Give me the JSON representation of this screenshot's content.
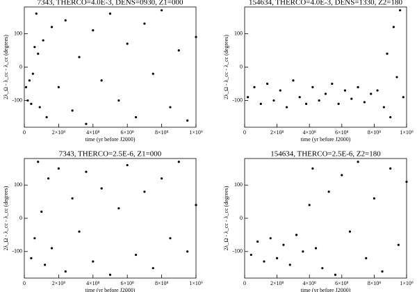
{
  "chart_data": [
    {
      "type": "scatter",
      "title": "7343, THERCO=4.0E-3, DENS=0930, Z1=000",
      "xlabel": "time (yr before J2000)",
      "ylabel": "2λ_Ω - λ_cc - λ_cc (degrees)",
      "color": "#000000",
      "x": [
        10000000,
        20000000,
        30000000,
        40000000,
        50000000,
        60000000,
        70000000,
        80000000,
        90000000,
        110000000,
        130000000,
        160000000,
        200000000,
        240000000,
        280000000,
        320000000,
        360000000,
        400000000,
        450000000,
        500000000,
        550000000,
        600000000,
        650000000,
        700000000,
        750000000,
        800000000,
        850000000,
        900000000,
        950000000,
        1000000000
      ],
      "values": [
        -60,
        -100,
        -40,
        -110,
        -20,
        60,
        160,
        40,
        -120,
        80,
        -150,
        120,
        -60,
        140,
        -130,
        30,
        -170,
        110,
        -40,
        160,
        -100,
        70,
        -150,
        130,
        -20,
        170,
        -120,
        50,
        -160,
        90
      ],
      "xlim": [
        0,
        1000000000
      ],
      "ylim": [
        -180,
        180
      ],
      "xticks": [
        0,
        {
          "value": 200000000,
          "label": "2×10⁸"
        },
        {
          "value": 400000000,
          "label": "4×10⁸"
        },
        {
          "value": 600000000,
          "label": "6×10⁸"
        },
        {
          "value": 800000000,
          "label": "8×10⁸"
        },
        {
          "value": 1000000000,
          "label": "1×10⁹"
        }
      ],
      "yticks": [
        -100,
        0,
        100
      ]
    },
    {
      "type": "scatter",
      "title": "154634, THERCO=4.0E-3, DENS=1330, Z2=180",
      "xlabel": "time (yr before J2000)",
      "ylabel": "2λ_Ω - λ_cc - λ_cc (degrees)",
      "color": "#000000",
      "x": [
        20000000,
        60000000,
        100000000,
        140000000,
        180000000,
        220000000,
        260000000,
        300000000,
        340000000,
        380000000,
        420000000,
        460000000,
        500000000,
        540000000,
        580000000,
        620000000,
        660000000,
        700000000,
        740000000,
        780000000,
        820000000,
        860000000,
        880000000,
        900000000,
        920000000,
        940000000,
        960000000,
        980000000
      ],
      "values": [
        -90,
        -60,
        -110,
        -50,
        -100,
        -70,
        -120,
        -40,
        -90,
        -110,
        -60,
        -100,
        -80,
        -50,
        -110,
        -70,
        -95,
        -60,
        -105,
        -80,
        -70,
        -120,
        40,
        -150,
        120,
        -30,
        170,
        -90
      ],
      "xlim": [
        0,
        1000000000
      ],
      "ylim": [
        -180,
        180
      ],
      "xticks": [
        0,
        {
          "value": 200000000,
          "label": "2×10⁸"
        },
        {
          "value": 400000000,
          "label": "4×10⁸"
        },
        {
          "value": 600000000,
          "label": "6×10⁸"
        },
        {
          "value": 800000000,
          "label": "8×10⁸"
        },
        {
          "value": 1000000000,
          "label": "1×10⁹"
        }
      ],
      "yticks": [
        -100,
        0,
        100
      ]
    },
    {
      "type": "scatter",
      "title": "7343, THERCO=2.5E-6, Z1=000",
      "xlabel": "time (yr before J2000)",
      "ylabel": "2λ_Ω - λ_cc - λ_cc (degrees)",
      "color": "#000000",
      "x": [
        40000000,
        60000000,
        80000000,
        100000000,
        120000000,
        140000000,
        160000000,
        200000000,
        240000000,
        280000000,
        320000000,
        360000000,
        400000000,
        450000000,
        500000000,
        550000000,
        600000000,
        650000000,
        700000000,
        750000000,
        800000000,
        850000000,
        900000000,
        950000000,
        1000000000
      ],
      "values": [
        -120,
        -60,
        170,
        20,
        -140,
        120,
        -90,
        150,
        -160,
        60,
        -40,
        140,
        -130,
        90,
        -170,
        30,
        160,
        -110,
        80,
        -150,
        120,
        -60,
        170,
        -100,
        40
      ],
      "xlim": [
        0,
        1000000000
      ],
      "ylim": [
        -180,
        180
      ],
      "xticks": [
        0,
        {
          "value": 200000000,
          "label": "2×10⁸"
        },
        {
          "value": 400000000,
          "label": "4×10⁸"
        },
        {
          "value": 600000000,
          "label": "6×10⁸"
        },
        {
          "value": 800000000,
          "label": "8×10⁸"
        },
        {
          "value": 1000000000,
          "label": "1×10⁹"
        }
      ],
      "yticks": [
        -100,
        0,
        100
      ]
    },
    {
      "type": "scatter",
      "title": "154634, THERCO=2.5E-6, Z2=180",
      "xlabel": "time (yr before J2000)",
      "ylabel": "2λ_Ω - λ_cc - λ_cc (degrees)",
      "color": "#000000",
      "x": [
        40000000,
        80000000,
        120000000,
        160000000,
        200000000,
        240000000,
        280000000,
        320000000,
        360000000,
        400000000,
        420000000,
        440000000,
        480000000,
        520000000,
        560000000,
        600000000,
        650000000,
        700000000,
        750000000,
        800000000,
        850000000,
        900000000,
        950000000,
        1000000000
      ],
      "values": [
        -110,
        -70,
        -130,
        -60,
        -120,
        -80,
        -140,
        -50,
        -100,
        40,
        150,
        -90,
        -150,
        80,
        -170,
        130,
        -40,
        170,
        -120,
        60,
        -160,
        150,
        -80,
        110
      ],
      "xlim": [
        0,
        1000000000
      ],
      "ylim": [
        -180,
        180
      ],
      "xticks": [
        0,
        {
          "value": 200000000,
          "label": "2×10⁸"
        },
        {
          "value": 400000000,
          "label": "4×10⁸"
        },
        {
          "value": 600000000,
          "label": "6×10⁸"
        },
        {
          "value": 800000000,
          "label": "8×10⁸"
        },
        {
          "value": 1000000000,
          "label": "1×10⁹"
        }
      ],
      "yticks": [
        -100,
        0,
        100
      ]
    }
  ]
}
